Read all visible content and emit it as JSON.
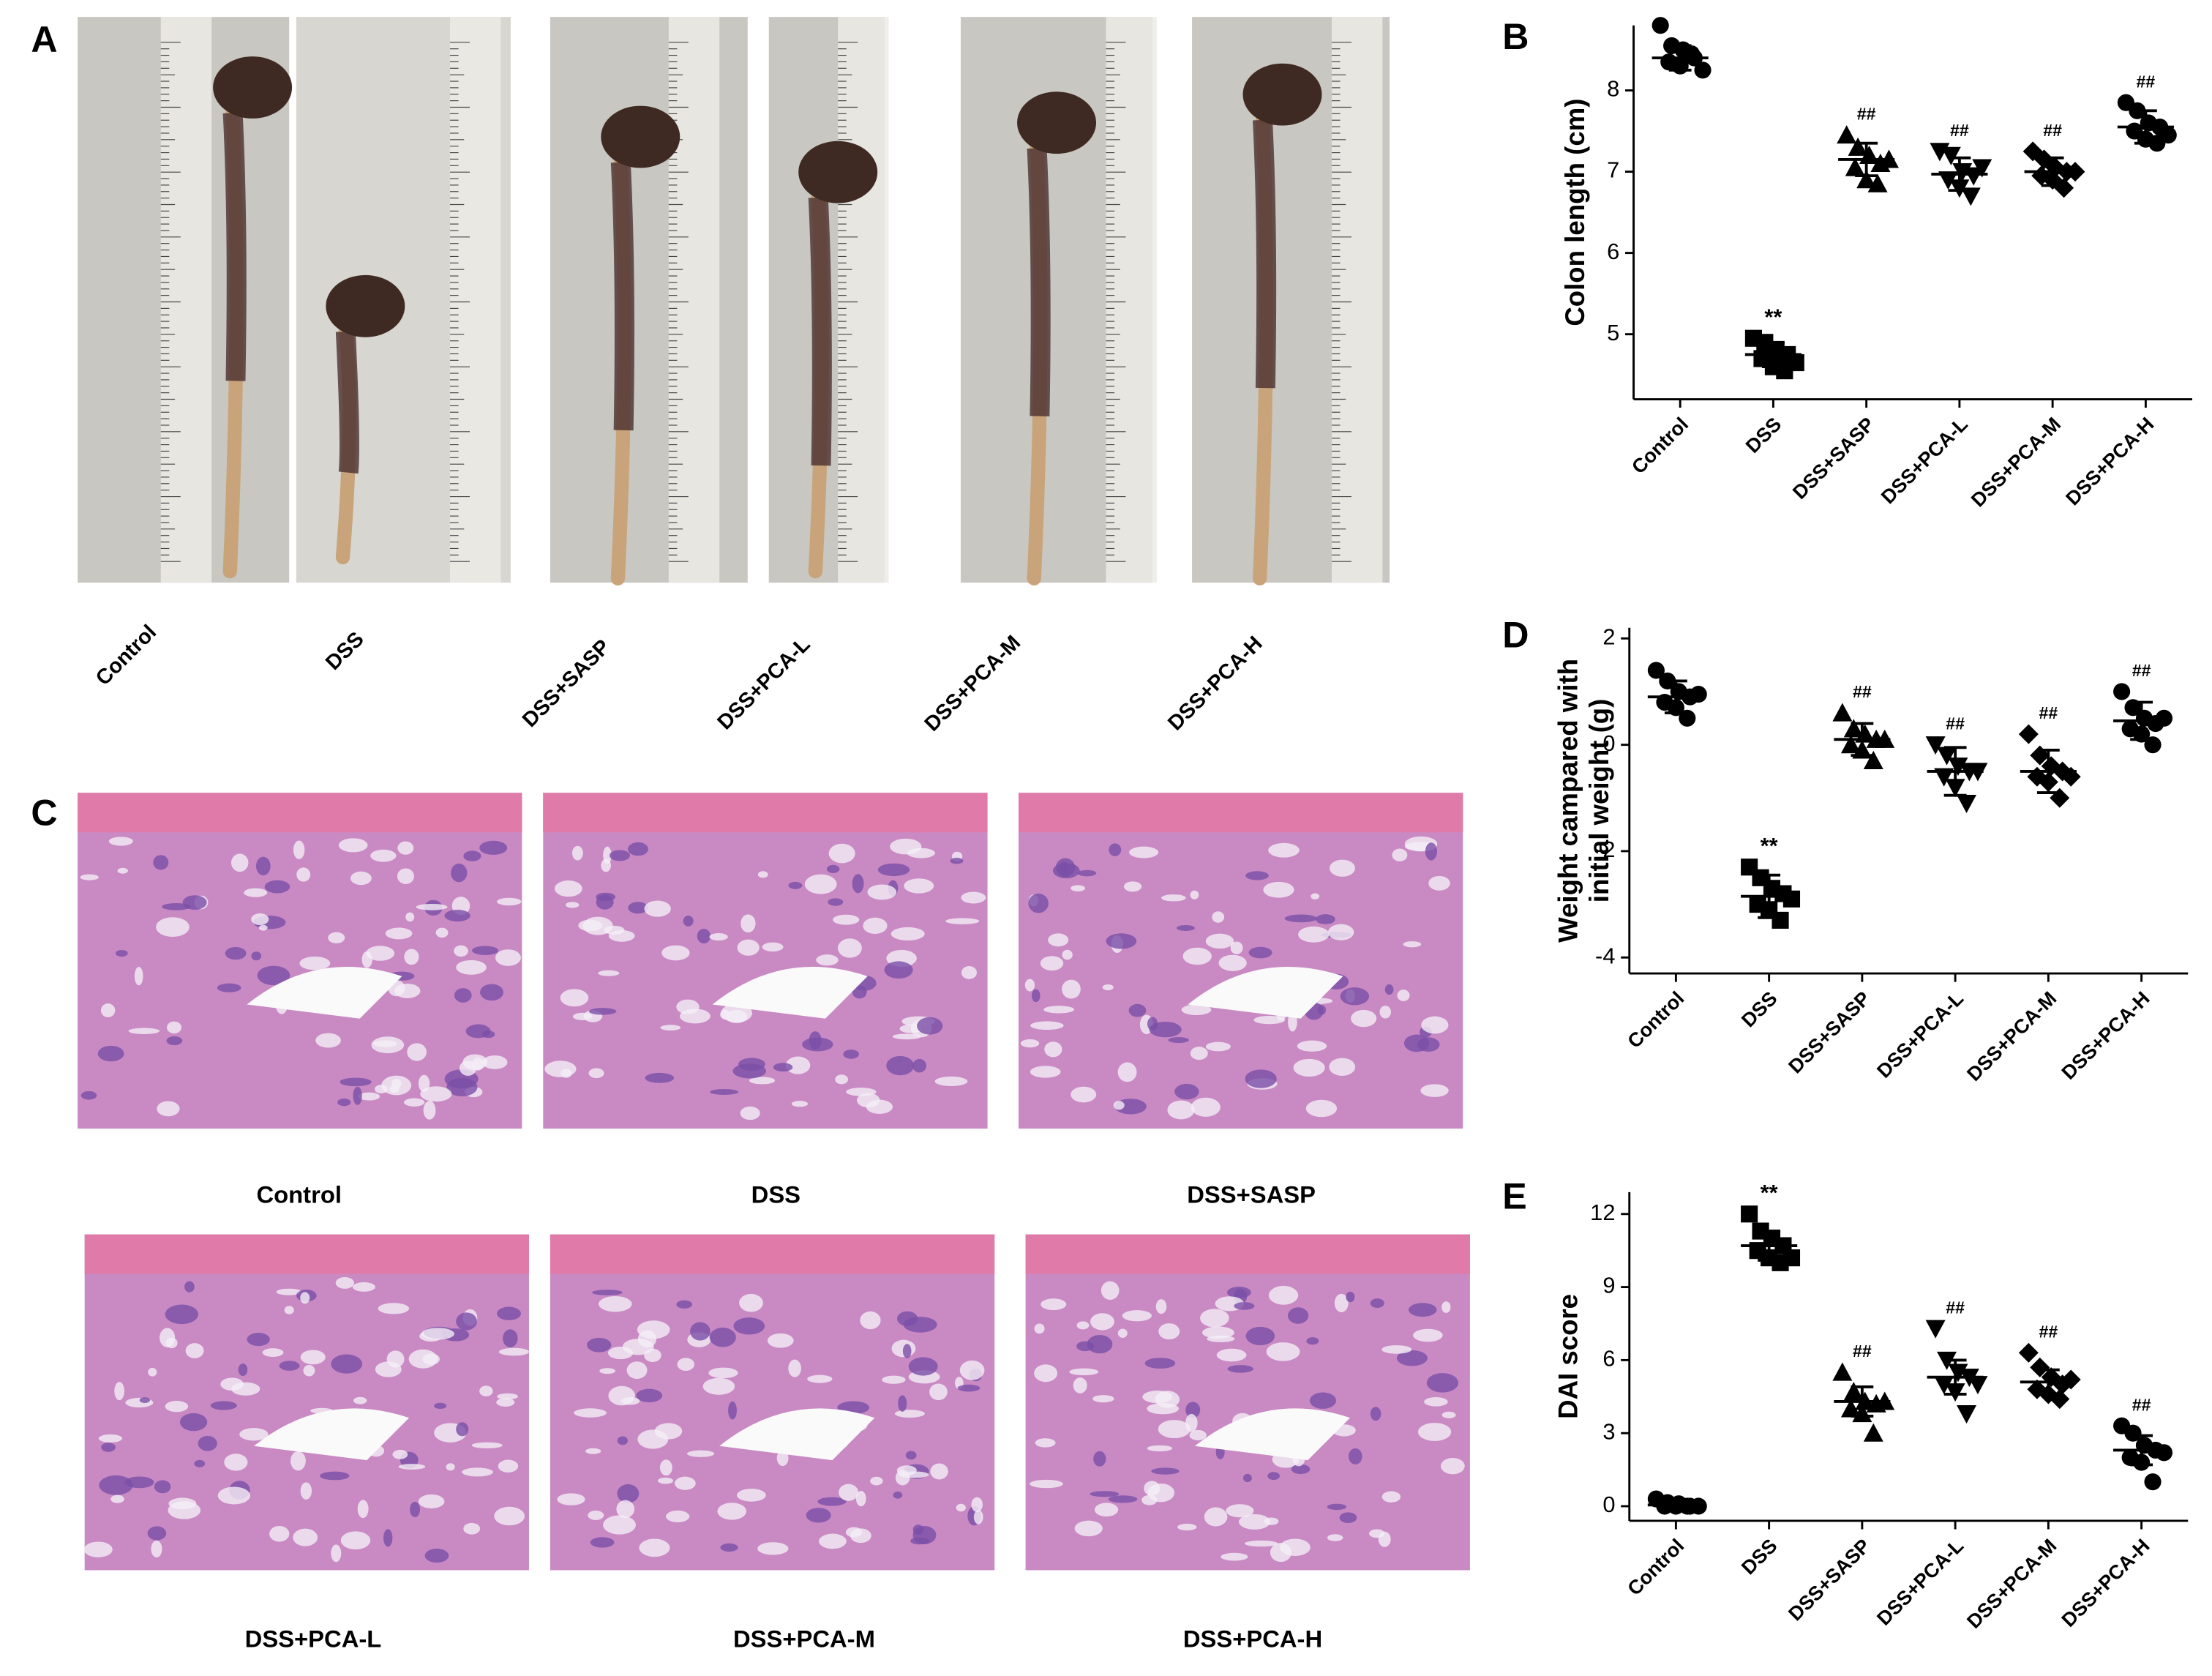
{
  "panel_labels": [
    "A",
    "B",
    "C",
    "D",
    "E"
  ],
  "photo_panel": {
    "labels": [
      "Control",
      "DSS",
      "DSS+SASP",
      "DSS+PCA-L",
      "DSS+PCA-M",
      "DSS+PCA-H"
    ]
  },
  "histology_panel": {
    "labels": [
      "Control",
      "DSS",
      "DSS+SASP",
      "DSS+PCA-L",
      "DSS+PCA-M",
      "DSS+PCA-H"
    ]
  },
  "chart_data": [
    {
      "type": "scatter",
      "y_label": [
        "Colon length (cm)"
      ],
      "categories": [
        "Control",
        "DSS",
        "DSS+SASP",
        "DSS+PCA-L",
        "DSS+PCA-M",
        "DSS+PCA-H"
      ],
      "values": [
        8.4,
        4.75,
        7.15,
        6.97,
        7.0,
        7.55
      ],
      "errors": [
        0.15,
        0.15,
        0.2,
        0.2,
        0.17,
        0.2
      ],
      "points": [
        [
          8.8,
          8.55,
          8.5,
          8.4,
          8.35,
          8.3,
          8.45,
          8.25
        ],
        [
          4.95,
          4.9,
          4.8,
          4.75,
          4.7,
          4.6,
          4.55,
          4.65
        ],
        [
          7.45,
          7.3,
          7.2,
          7.1,
          7.05,
          6.9,
          6.85,
          7.15
        ],
        [
          7.25,
          7.2,
          7.0,
          6.95,
          6.9,
          6.8,
          6.7,
          7.05
        ],
        [
          7.25,
          7.15,
          7.05,
          7.0,
          6.95,
          6.9,
          6.8,
          7.0
        ],
        [
          7.85,
          7.75,
          7.6,
          7.55,
          7.5,
          7.4,
          7.35,
          7.45
        ]
      ],
      "annotations": [
        null,
        "**",
        "##",
        "##",
        "##",
        "##"
      ],
      "markers": [
        "circle",
        "square",
        "triangle-up",
        "triangle-down",
        "diamond",
        "circle"
      ],
      "color": "#000000",
      "ylim": [
        4.2,
        8.8
      ],
      "yticks": [
        5,
        6,
        7,
        8
      ]
    },
    {
      "type": "scatter",
      "y_label": [
        "Weight campared with",
        "initial weight (g)"
      ],
      "categories": [
        "Control",
        "DSS",
        "DSS+SASP",
        "DSS+PCA-L",
        "DSS+PCA-M",
        "DSS+PCA-H"
      ],
      "values": [
        0.9,
        -2.85,
        0.1,
        -0.5,
        -0.5,
        0.45
      ],
      "errors": [
        0.3,
        0.4,
        0.3,
        0.45,
        0.4,
        0.35
      ],
      "points": [
        [
          1.4,
          1.2,
          1.0,
          0.9,
          0.8,
          0.7,
          0.5,
          0.95
        ],
        [
          -2.3,
          -2.5,
          -2.7,
          -2.8,
          -3.0,
          -3.1,
          -3.3,
          -2.9
        ],
        [
          0.6,
          0.3,
          0.2,
          0.1,
          0.0,
          -0.1,
          -0.3,
          0.1
        ],
        [
          0.0,
          -0.2,
          -0.4,
          -0.5,
          -0.6,
          -0.8,
          -1.1,
          -0.5
        ],
        [
          0.2,
          -0.2,
          -0.4,
          -0.5,
          -0.6,
          -0.7,
          -1.0,
          -0.6
        ],
        [
          1.0,
          0.7,
          0.5,
          0.4,
          0.3,
          0.2,
          0.0,
          0.5
        ]
      ],
      "annotations": [
        null,
        "**",
        "##",
        "##",
        "##",
        "##"
      ],
      "markers": [
        "circle",
        "square",
        "triangle-up",
        "triangle-down",
        "diamond",
        "circle"
      ],
      "color": "#000000",
      "ylim": [
        -4.3,
        2.2
      ],
      "yticks": [
        -4,
        -2,
        0,
        2
      ]
    },
    {
      "type": "scatter",
      "y_label": [
        "DAI score"
      ],
      "categories": [
        "Control",
        "DSS",
        "DSS+SASP",
        "DSS+PCA-L",
        "DSS+PCA-M",
        "DSS+PCA-H"
      ],
      "values": [
        0.05,
        10.7,
        4.3,
        5.3,
        5.1,
        2.3
      ],
      "errors": [
        0.1,
        0.6,
        0.6,
        0.7,
        0.5,
        0.6
      ],
      "points": [
        [
          0.3,
          0.15,
          0.1,
          0,
          0,
          0,
          0,
          0
        ],
        [
          12,
          11.3,
          11,
          10.7,
          10.5,
          10.2,
          10,
          10.2
        ],
        [
          5.5,
          4.7,
          4.3,
          4.2,
          4.0,
          3.8,
          3.0,
          4.3
        ],
        [
          7.3,
          6.0,
          5.5,
          5.3,
          5.0,
          4.7,
          3.8,
          5.0
        ],
        [
          6.3,
          5.7,
          5.3,
          5.0,
          4.8,
          4.6,
          4.4,
          5.2
        ],
        [
          3.3,
          3.0,
          2.5,
          2.3,
          2.0,
          1.8,
          1.0,
          2.2
        ]
      ],
      "annotations": [
        null,
        "**",
        "##",
        "##",
        "##",
        "##"
      ],
      "markers": [
        "circle",
        "square",
        "triangle-up",
        "triangle-down",
        "diamond",
        "circle"
      ],
      "color": "#000000",
      "ylim": [
        -0.6,
        12.9
      ],
      "yticks": [
        0,
        3,
        6,
        9,
        12
      ]
    }
  ]
}
